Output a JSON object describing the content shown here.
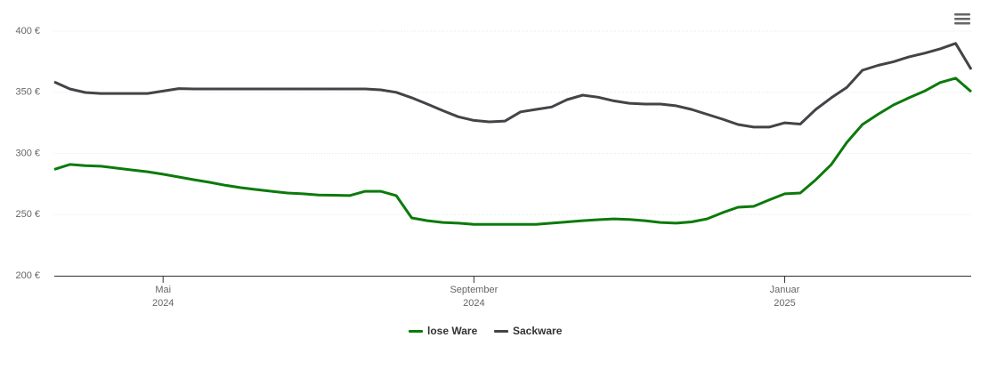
{
  "chart_data": {
    "type": "line",
    "categories": [
      null,
      null,
      null,
      null,
      null,
      null,
      null,
      "Mai\n2024",
      null,
      null,
      null,
      null,
      null,
      null,
      null,
      null,
      null,
      null,
      null,
      null,
      null,
      null,
      null,
      null,
      null,
      null,
      null,
      "September\n2024",
      null,
      null,
      null,
      null,
      null,
      null,
      null,
      null,
      null,
      null,
      null,
      null,
      null,
      null,
      null,
      null,
      null,
      null,
      null,
      "Januar\n2025",
      null,
      null,
      null,
      null,
      null,
      null,
      null,
      null,
      null,
      null,
      null,
      null
    ],
    "series": [
      {
        "name": "lose Ware",
        "color": "#0b7a0b",
        "values": [
          287,
          291,
          290,
          289.5,
          288,
          286.5,
          285,
          283,
          280.7,
          278.5,
          276.4,
          274,
          272,
          270.5,
          269,
          267.6,
          267,
          266,
          265.8,
          265.5,
          269,
          269,
          265.5,
          247.3,
          245,
          243.6,
          243,
          242,
          242,
          242,
          242,
          242,
          243,
          244,
          245,
          245.8,
          246.5,
          246,
          245,
          243.6,
          243,
          244,
          246.5,
          251.6,
          256,
          256.7,
          262,
          267,
          267.6,
          278.5,
          291,
          309,
          323.6,
          332,
          339.6,
          345.5,
          351,
          358,
          361.5,
          350.5
        ]
      },
      {
        "name": "Sackware",
        "color": "#434348",
        "values": [
          358.5,
          352.7,
          349.8,
          349,
          349,
          349,
          349,
          351,
          353,
          352.7,
          352.7,
          352.7,
          352.7,
          352.7,
          352.7,
          352.7,
          352.7,
          352.7,
          352.7,
          352.7,
          352.7,
          352,
          350,
          345.5,
          340.4,
          335,
          330,
          327,
          325.8,
          326.5,
          334,
          336,
          338,
          344,
          347.6,
          346,
          343,
          341,
          340.4,
          340.4,
          339,
          336,
          332,
          328,
          323.6,
          321.5,
          321.5,
          325,
          324,
          336,
          345.5,
          354,
          368,
          372,
          375,
          379,
          382,
          385.5,
          390,
          368.7
        ]
      }
    ],
    "ylim": [
      200,
      400
    ],
    "yticks": [
      {
        "value": 200,
        "label": "200 €"
      },
      {
        "value": 250,
        "label": "250 €"
      },
      {
        "value": 300,
        "label": "300 €"
      },
      {
        "value": 350,
        "label": "350 €"
      },
      {
        "value": 400,
        "label": "400 €"
      }
    ],
    "grid": true
  }
}
